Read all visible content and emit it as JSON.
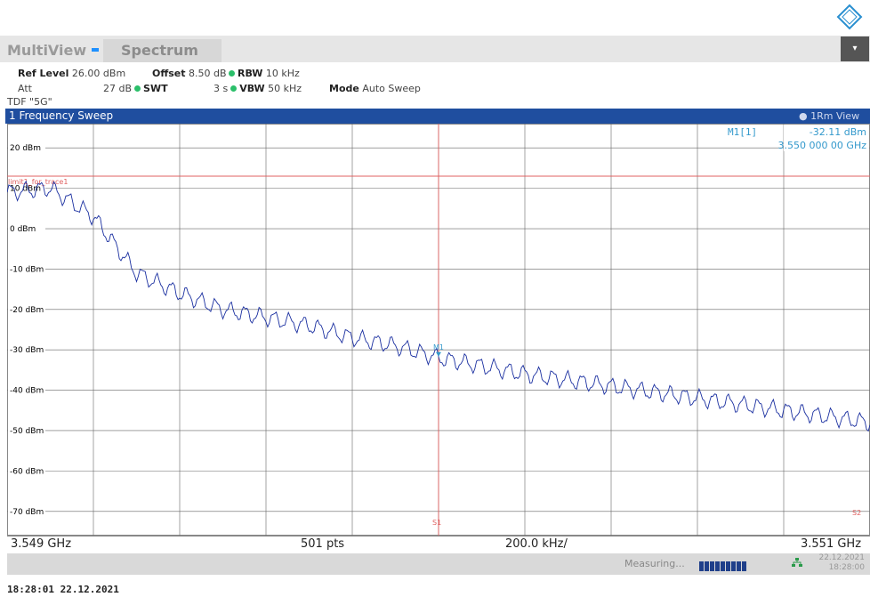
{
  "logo": {
    "text": "R&S"
  },
  "tabs": {
    "multiview": "MultiView",
    "spectrum": "Spectrum"
  },
  "settings": {
    "ref_level_label": "Ref Level",
    "ref_level_value": "26.00 dBm",
    "offset_label": "Offset",
    "offset_value": "8.50 dB",
    "rbw_label": "RBW",
    "rbw_value": "10 kHz",
    "att_label": "Att",
    "att_value": "27 dB",
    "swt_label": "SWT",
    "swt_value": "3 s",
    "vbw_label": "VBW",
    "vbw_value": "50 kHz",
    "mode_label": "Mode",
    "mode_value": "Auto Sweep"
  },
  "tdf": "TDF \"5G\"",
  "window": {
    "title": "1 Frequency Sweep",
    "view": "1Rm View"
  },
  "marker": {
    "label": "M1[1]",
    "level": "-32.11 dBm",
    "freq": "3.550 000 00 GHz",
    "tag": "M1"
  },
  "limit_line": {
    "name": "limit1_for_trace1",
    "level_dbm": 13
  },
  "lines": {
    "s1": "S1",
    "s2": "S2"
  },
  "bottom": {
    "start": "3.549 GHz",
    "points": "501 pts",
    "span_div": "200.0 kHz/",
    "stop": "3.551 GHz"
  },
  "status": {
    "measuring": "Measuring...",
    "date": "22.12.2021",
    "time": "18:28:00"
  },
  "footer": "18:28:01  22.12.2021",
  "colors": {
    "trace": "#1a2fa0",
    "limit": "#e06060",
    "marker": "#3399cc",
    "title_bar": "#1f4e9f"
  },
  "chart_data": {
    "type": "line",
    "title": "1 Frequency Sweep",
    "xlabel": "",
    "ylabel": "",
    "xlim": [
      3.549,
      3.551
    ],
    "ylim": [
      -76,
      26
    ],
    "y_ticks": [
      20,
      10,
      0,
      -10,
      -20,
      -30,
      -40,
      -50,
      -60,
      -70
    ],
    "y_tick_labels": [
      "20 dBm",
      "10 dBm",
      "0 dBm",
      "-10 dBm",
      "-20 dBm",
      "-30 dBm",
      "-40 dBm",
      "-50 dBm",
      "-60 dBm",
      "-70 dBm"
    ],
    "x_divisions": 10,
    "grid": true,
    "series": [
      {
        "x": [
          3.549,
          3.5491,
          3.5492,
          3.5493,
          3.5494,
          3.5495,
          3.5496,
          3.5497,
          3.5498,
          3.5499,
          3.55,
          3.5501,
          3.5502,
          3.5503,
          3.5504,
          3.5505,
          3.5506,
          3.5507,
          3.5508,
          3.5509,
          3.551
        ],
        "values": [
          9,
          10,
          3,
          -11,
          -16,
          -20,
          -22,
          -24,
          -27,
          -29,
          -32,
          -34,
          -36,
          -37.5,
          -39,
          -40.5,
          -42,
          -43.5,
          -45,
          -46.5,
          -48
        ]
      }
    ]
  }
}
